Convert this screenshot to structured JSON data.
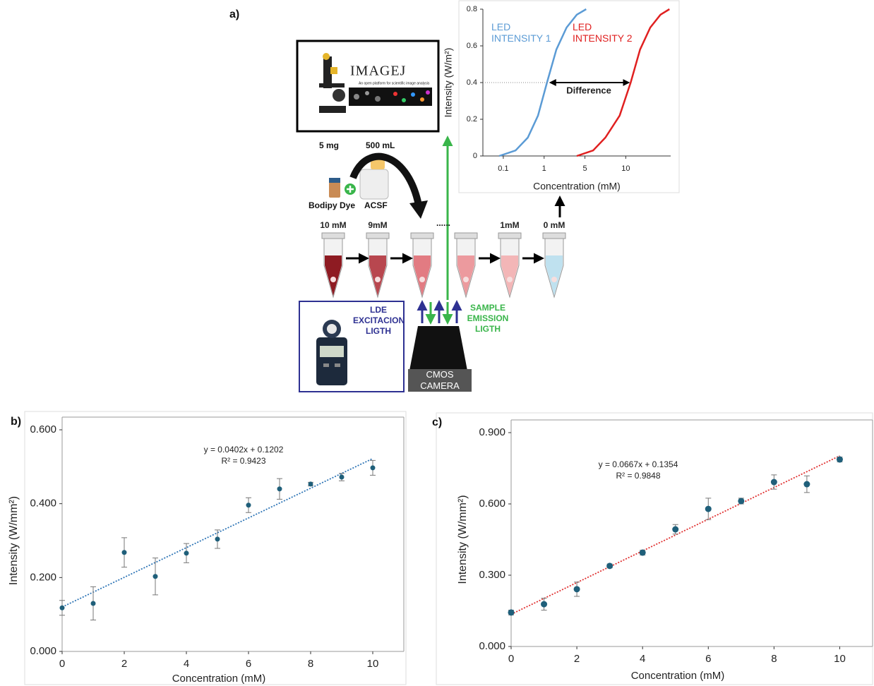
{
  "diagram": {
    "label": "a)",
    "software": {
      "name": "IMAGEJ",
      "caption": "An open platform for scientific image analysis"
    },
    "reagents": {
      "mass": "5 mg",
      "volume": "500 mL",
      "dye": "Bodipy Dye",
      "solvent": "ACSF"
    },
    "tube_labels": [
      "10 mM",
      "9mM",
      null,
      null,
      "1mM",
      "0 mM"
    ],
    "tube_colors": [
      "#8e1b22",
      "#b8474f",
      "#e27b82",
      "#ec9a9e",
      "#f3b6b7",
      "#bfe1ef"
    ],
    "ellipsis": "......",
    "excitation": "LDE EXCITACION LIGTH",
    "emission": "SAMPLE EMISSION LIGTH",
    "camera": "CMOS CAMERA"
  },
  "chart_data": [
    {
      "type": "line",
      "x_label": "Concentration (mM)",
      "y_label": "Intensity (W/m²)",
      "xlim": [
        -0.5,
        4.1
      ],
      "xticks": [
        {
          "value": 0,
          "label": "0.1"
        },
        {
          "value": 1,
          "label": "1"
        },
        {
          "value": 2,
          "label": "5"
        },
        {
          "value": 3,
          "label": "10"
        }
      ],
      "ylim": [
        0,
        0.8
      ],
      "yticks": [
        0,
        0.2,
        0.4,
        0.6,
        0.8
      ],
      "annotation": "Difference",
      "series": [
        {
          "name": "LED INTENSITY 1",
          "color": "#5b9bd5",
          "x": [
            -0.1,
            0.3,
            0.6,
            0.85,
            1.07,
            1.3,
            1.55,
            1.8,
            2.03
          ],
          "values": [
            0,
            0.03,
            0.1,
            0.22,
            0.4,
            0.58,
            0.7,
            0.77,
            0.8
          ]
        },
        {
          "name": "LED INTENSITY 2",
          "color": "#e02020",
          "x": [
            1.8,
            2.2,
            2.5,
            2.85,
            3.12,
            3.35,
            3.6,
            3.85,
            4.07
          ],
          "values": [
            0,
            0.03,
            0.1,
            0.22,
            0.4,
            0.58,
            0.7,
            0.77,
            0.8
          ]
        }
      ]
    },
    {
      "type": "scatter",
      "panel_label": "b)",
      "x_label": "Concentration (mM)",
      "y_label": "Intensity (W/mm²)",
      "xlim": [
        0,
        11
      ],
      "xticks": [
        0,
        2,
        4,
        6,
        8,
        10
      ],
      "ylim": [
        0,
        0.6
      ],
      "yticks": [
        {
          "value": 0,
          "label": "0.000"
        },
        {
          "value": 0.2,
          "label": "0.200"
        },
        {
          "value": 0.4,
          "label": "0.400"
        },
        {
          "value": 0.6,
          "label": "0.600"
        }
      ],
      "x": [
        0,
        1,
        2,
        3,
        4,
        5,
        6,
        7,
        8,
        9,
        10
      ],
      "values": [
        0.118,
        0.13,
        0.268,
        0.203,
        0.266,
        0.304,
        0.396,
        0.44,
        0.453,
        0.472,
        0.497
      ],
      "errors": [
        0.02,
        0.045,
        0.04,
        0.05,
        0.026,
        0.025,
        0.02,
        0.028,
        0.005,
        0.01,
        0.02
      ],
      "color": "#1f5f7a",
      "trend_color": "#2e75b6",
      "trendline": {
        "slope": 0.0402,
        "intercept": 0.1202
      },
      "equation": "y = 0.0402x + 0.1202",
      "r2": "R² = 0.9423"
    },
    {
      "type": "scatter",
      "panel_label": "c)",
      "x_label": "Concentration (mM)",
      "y_label": "Intensity (W/mm²)",
      "xlim": [
        0,
        11
      ],
      "xticks": [
        0,
        2,
        4,
        6,
        8,
        10
      ],
      "ylim": [
        0,
        0.9
      ],
      "yticks": [
        {
          "value": 0,
          "label": "0.000"
        },
        {
          "value": 0.3,
          "label": "0.300"
        },
        {
          "value": 0.6,
          "label": "0.600"
        },
        {
          "value": 0.9,
          "label": "0.900"
        }
      ],
      "x": [
        0,
        1,
        2,
        3,
        4,
        5,
        6,
        7,
        8,
        9,
        10
      ],
      "values": [
        0.143,
        0.178,
        0.241,
        0.339,
        0.395,
        0.493,
        0.579,
        0.612,
        0.692,
        0.683,
        0.787
      ],
      "errors": [
        0.01,
        0.025,
        0.03,
        0.008,
        0.01,
        0.02,
        0.045,
        0.012,
        0.03,
        0.035,
        0.01
      ],
      "color": "#1f5f7a",
      "trend_color": "#e03030",
      "trendline": {
        "slope": 0.0667,
        "intercept": 0.1354
      },
      "equation": "y = 0.0667x + 0.1354",
      "r2": "R² = 0.9848"
    }
  ]
}
